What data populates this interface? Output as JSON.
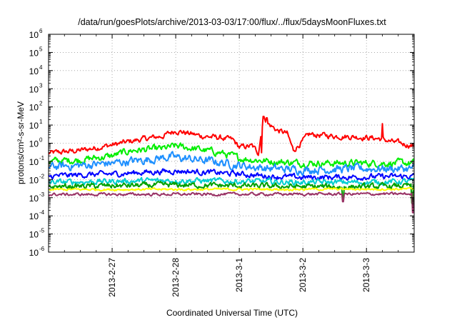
{
  "chart_data": {
    "type": "line",
    "title": "/data/run/goesPlots/archive/2013-03-03/17:00/flux/../flux/5daysMoonFluxes.txt",
    "xlabel": "Coordinated Universal Time (UTC)",
    "ylabel": "protons/cm²-s-sr-MeV",
    "yscale": "log",
    "ylim": [
      1e-06,
      1000000.0
    ],
    "xlim": [
      0,
      5.75
    ],
    "y_ticks": [
      {
        "base": "10",
        "exp": "-6",
        "value": 1e-06
      },
      {
        "base": "10",
        "exp": "-5",
        "value": 1e-05
      },
      {
        "base": "10",
        "exp": "-4",
        "value": 0.0001
      },
      {
        "base": "10",
        "exp": "-3",
        "value": 0.001
      },
      {
        "base": "10",
        "exp": "-2",
        "value": 0.01
      },
      {
        "base": "10",
        "exp": "-1",
        "value": 0.1
      },
      {
        "base": "10",
        "exp": "0",
        "value": 1
      },
      {
        "base": "10",
        "exp": "1",
        "value": 10
      },
      {
        "base": "10",
        "exp": "2",
        "value": 100
      },
      {
        "base": "10",
        "exp": "3",
        "value": 1000
      },
      {
        "base": "10",
        "exp": "4",
        "value": 10000
      },
      {
        "base": "10",
        "exp": "5",
        "value": 100000
      },
      {
        "base": "10",
        "exp": "6",
        "value": 1000000
      }
    ],
    "x_ticks": [
      {
        "label": "2013-2-27",
        "value": 1
      },
      {
        "label": "2013-2-28",
        "value": 2
      },
      {
        "label": "2013-3-1",
        "value": 3
      },
      {
        "label": "2013-3-2",
        "value": 4
      },
      {
        "label": "2013-3-3",
        "value": 5
      }
    ],
    "grid": true,
    "series": [
      {
        "color": "#ff0000",
        "base": [
          [
            0,
            0.28
          ],
          [
            0.5,
            0.4
          ],
          [
            1,
            0.8
          ],
          [
            1.4,
            1.5
          ],
          [
            1.8,
            2.5
          ],
          [
            2.0,
            5
          ],
          [
            2.4,
            2.5
          ],
          [
            2.7,
            2
          ],
          [
            2.9,
            1.5
          ],
          [
            3.0,
            0.6
          ],
          [
            3.2,
            0.7
          ],
          [
            3.3,
            0.3
          ],
          [
            3.38,
            30
          ],
          [
            3.45,
            12
          ],
          [
            3.6,
            5
          ],
          [
            3.75,
            3.5
          ],
          [
            3.85,
            0.4
          ],
          [
            4.1,
            3
          ],
          [
            4.5,
            2.5
          ],
          [
            4.9,
            2.2
          ],
          [
            5.2,
            1.8
          ],
          [
            5.4,
            1.2
          ],
          [
            5.75,
            0.7
          ]
        ],
        "noise": 0.12,
        "spikes": [
          [
            3.38,
            30
          ],
          [
            3.43,
            25
          ],
          [
            5.25,
            12
          ],
          [
            3.35,
            0.3
          ]
        ]
      },
      {
        "color": "#00ee00",
        "base": [
          [
            0,
            0.1
          ],
          [
            0.5,
            0.12
          ],
          [
            1,
            0.2
          ],
          [
            1.3,
            0.4
          ],
          [
            1.8,
            0.5
          ],
          [
            2.0,
            0.7
          ],
          [
            2.3,
            0.5
          ],
          [
            2.7,
            0.3
          ],
          [
            3.0,
            0.15
          ],
          [
            3.5,
            0.1
          ],
          [
            4.0,
            0.08
          ],
          [
            5.0,
            0.08
          ],
          [
            5.75,
            0.08
          ]
        ],
        "noise": 0.15,
        "spikes": []
      },
      {
        "color": "#1e90ff",
        "base": [
          [
            0,
            0.05
          ],
          [
            0.5,
            0.06
          ],
          [
            1,
            0.08
          ],
          [
            1.5,
            0.12
          ],
          [
            1.9,
            0.18
          ],
          [
            2.1,
            0.15
          ],
          [
            2.6,
            0.1
          ],
          [
            3.0,
            0.06
          ],
          [
            3.5,
            0.04
          ],
          [
            4.0,
            0.035
          ],
          [
            5.0,
            0.04
          ],
          [
            5.75,
            0.04
          ]
        ],
        "noise": 0.18,
        "spikes": []
      },
      {
        "color": "#0000ff",
        "base": [
          [
            0,
            0.015
          ],
          [
            0.5,
            0.018
          ],
          [
            1,
            0.02
          ],
          [
            1.5,
            0.025
          ],
          [
            2,
            0.03
          ],
          [
            2.5,
            0.025
          ],
          [
            3,
            0.02
          ],
          [
            3.5,
            0.015
          ],
          [
            4,
            0.013
          ],
          [
            5,
            0.014
          ],
          [
            5.75,
            0.015
          ]
        ],
        "noise": 0.12,
        "spikes": []
      },
      {
        "color": "#00ced1",
        "base": [
          [
            0,
            0.007
          ],
          [
            1,
            0.008
          ],
          [
            2,
            0.009
          ],
          [
            3,
            0.008
          ],
          [
            4,
            0.007
          ],
          [
            5,
            0.007
          ],
          [
            5.75,
            0.008
          ]
        ],
        "noise": 0.12,
        "spikes": []
      },
      {
        "color": "#00a000",
        "base": [
          [
            0,
            0.004
          ],
          [
            1,
            0.0045
          ],
          [
            2,
            0.005
          ],
          [
            3,
            0.0045
          ],
          [
            4,
            0.004
          ],
          [
            5,
            0.004
          ],
          [
            5.75,
            0.0045
          ]
        ],
        "noise": 0.12,
        "spikes": [
          [
            4.63,
            0.0008
          ],
          [
            5.72,
            0.0005
          ]
        ]
      },
      {
        "color": "#ffff00",
        "base": [
          [
            0,
            0.0028
          ],
          [
            5.75,
            0.003
          ]
        ],
        "noise": 0.05,
        "spikes": []
      },
      {
        "color": "#993366",
        "base": [
          [
            0,
            0.0015
          ],
          [
            5.75,
            0.0016
          ]
        ],
        "noise": 0.06,
        "spikes": [
          [
            4.63,
            0.0006
          ],
          [
            5.73,
            0.00015
          ]
        ]
      }
    ]
  }
}
